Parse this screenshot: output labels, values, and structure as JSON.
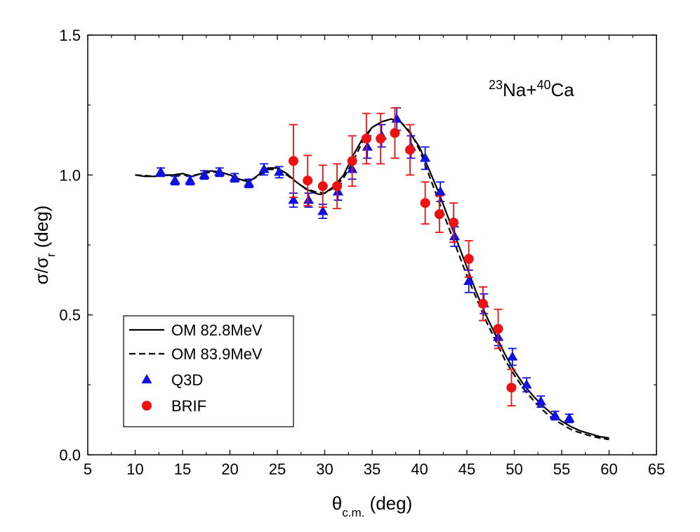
{
  "chart_data": {
    "type": "scatter",
    "title": "",
    "annotation": {
      "parts": [
        {
          "text": "23",
          "sup": true
        },
        {
          "text": "Na+"
        },
        {
          "text": "40",
          "sup": true
        },
        {
          "text": "Ca"
        }
      ]
    },
    "xlabel": {
      "main": "θ",
      "sub": "c.m.",
      "rest": " (deg)"
    },
    "ylabel": {
      "main": "σ/σ",
      "sub": "r",
      "rest": " (deg)"
    },
    "xlim": [
      5,
      65
    ],
    "ylim": [
      0.0,
      1.5
    ],
    "xticks": [
      5,
      10,
      15,
      20,
      25,
      30,
      35,
      40,
      45,
      50,
      55,
      60,
      65
    ],
    "xtick_labels": [
      "5",
      "10",
      "15",
      "20",
      "25",
      "30",
      "35",
      "40",
      "45",
      "50",
      "55",
      "60",
      "65"
    ],
    "yticks": [
      0.0,
      0.5,
      1.0,
      1.5
    ],
    "ytick_labels": [
      "0.0",
      "0.5",
      "1.0",
      "1.5"
    ],
    "grid": false,
    "legend_position": "bottom-left",
    "colors": {
      "q3d": "#1010e0",
      "brif": "#ee1111",
      "curve": "#000000"
    },
    "series": [
      {
        "name": "OM 82.8MeV",
        "kind": "line",
        "style": "solid",
        "x": [
          10,
          11,
          12,
          13,
          14,
          15,
          16,
          17,
          18,
          19,
          20,
          21,
          22,
          23,
          24,
          25,
          26,
          27,
          28,
          29,
          29.5,
          30,
          31,
          32,
          33,
          34,
          35,
          36,
          37,
          38,
          39,
          40,
          41,
          42,
          43,
          44,
          45,
          46,
          47,
          48,
          49,
          50,
          51,
          52,
          53,
          54,
          55,
          56,
          57,
          58,
          59,
          60
        ],
        "y": [
          1.0,
          0.995,
          0.995,
          1.0,
          1.0,
          1.005,
          0.995,
          1.005,
          1.015,
          1.01,
          1.0,
          0.985,
          0.975,
          1.0,
          1.025,
          1.025,
          1.005,
          0.975,
          0.95,
          0.935,
          0.93,
          0.935,
          0.96,
          1.0,
          1.07,
          1.13,
          1.17,
          1.19,
          1.2,
          1.19,
          1.15,
          1.1,
          1.02,
          0.94,
          0.85,
          0.76,
          0.67,
          0.58,
          0.5,
          0.43,
          0.36,
          0.3,
          0.25,
          0.21,
          0.175,
          0.145,
          0.12,
          0.1,
          0.085,
          0.075,
          0.065,
          0.06
        ]
      },
      {
        "name": "OM 83.9MeV",
        "kind": "line",
        "style": "dashed",
        "x": [
          10,
          11,
          12,
          13,
          14,
          15,
          16,
          17,
          18,
          19,
          20,
          21,
          22,
          23,
          24,
          25,
          26,
          27,
          28,
          29,
          30,
          31,
          32,
          33,
          34,
          35,
          36,
          37,
          38,
          39,
          40,
          41,
          42,
          43,
          44,
          45,
          46,
          47,
          48,
          49,
          50,
          51,
          52,
          53,
          54,
          55,
          56,
          57,
          58,
          59,
          60
        ],
        "y": [
          1.0,
          0.998,
          0.995,
          0.998,
          1.0,
          1.0,
          0.997,
          1.005,
          1.01,
          1.01,
          1.0,
          0.985,
          0.978,
          0.995,
          1.02,
          1.02,
          1.0,
          0.975,
          0.952,
          0.94,
          0.935,
          0.955,
          0.99,
          1.05,
          1.12,
          1.17,
          1.19,
          1.2,
          1.19,
          1.155,
          1.09,
          1.0,
          0.91,
          0.82,
          0.73,
          0.64,
          0.56,
          0.48,
          0.41,
          0.34,
          0.285,
          0.235,
          0.195,
          0.16,
          0.13,
          0.11,
          0.09,
          0.078,
          0.068,
          0.06,
          0.055
        ]
      },
      {
        "name": "Q3D",
        "kind": "points",
        "marker": "triangle",
        "x": [
          12.7,
          14.2,
          15.8,
          17.3,
          18.9,
          20.5,
          22.0,
          23.6,
          25.2,
          26.7,
          28.3,
          29.8,
          31.4,
          32.9,
          34.5,
          36.0,
          37.6,
          39.1,
          40.6,
          42.2,
          43.7,
          45.2,
          46.8,
          48.3,
          49.8,
          51.3,
          52.8,
          54.3,
          55.8
        ],
        "y": [
          1.01,
          0.98,
          0.98,
          1.0,
          1.01,
          0.99,
          0.97,
          1.02,
          1.01,
          0.91,
          0.91,
          0.87,
          0.94,
          1.02,
          1.1,
          1.14,
          1.2,
          1.1,
          1.06,
          0.94,
          0.78,
          0.62,
          0.54,
          0.42,
          0.35,
          0.25,
          0.19,
          0.14,
          0.13
        ],
        "err": [
          0.015,
          0.015,
          0.015,
          0.015,
          0.015,
          0.015,
          0.015,
          0.02,
          0.02,
          0.025,
          0.025,
          0.025,
          0.03,
          0.035,
          0.04,
          0.04,
          0.04,
          0.04,
          0.04,
          0.035,
          0.035,
          0.04,
          0.035,
          0.03,
          0.03,
          0.025,
          0.02,
          0.015,
          0.015
        ]
      },
      {
        "name": "BRIF",
        "kind": "points",
        "marker": "circle",
        "x": [
          26.7,
          28.2,
          29.8,
          31.3,
          32.9,
          34.4,
          35.9,
          37.4,
          39.0,
          40.6,
          42.1,
          43.6,
          45.2,
          46.7,
          48.3,
          49.7
        ],
        "y": [
          1.05,
          0.98,
          0.96,
          0.96,
          1.05,
          1.13,
          1.13,
          1.15,
          1.09,
          0.9,
          0.86,
          0.83,
          0.7,
          0.54,
          0.45,
          0.24
        ],
        "err": [
          0.13,
          0.09,
          0.075,
          0.08,
          0.09,
          0.09,
          0.09,
          0.09,
          0.09,
          0.075,
          0.065,
          0.07,
          0.065,
          0.06,
          0.07,
          0.065
        ]
      }
    ]
  }
}
